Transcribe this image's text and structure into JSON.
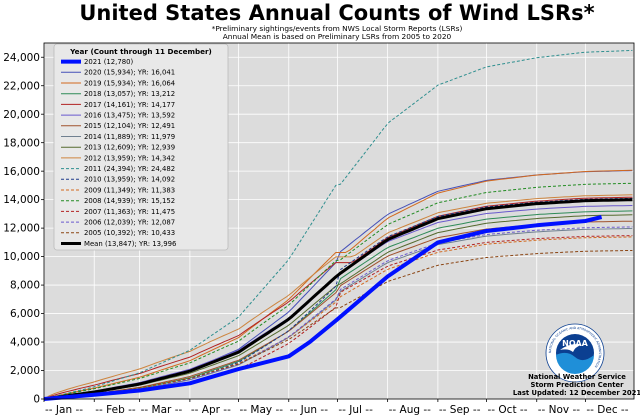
{
  "chart_data": {
    "type": "line",
    "title": "United States Annual Counts of Wind LSRs*",
    "subtitle_lines": [
      "*Preliminary sightings/events from NWS Local Storm Reports (LSRs)",
      "Annual Mean is based on Preliminary LSRs from 2005 to 2020"
    ],
    "xlabel": "",
    "ylabel": "",
    "ylim": [
      0,
      25000
    ],
    "yticks": [
      0,
      2000,
      4000,
      6000,
      8000,
      10000,
      12000,
      14000,
      16000,
      18000,
      20000,
      22000,
      24000
    ],
    "ytick_labels": [
      "0",
      "2,000",
      "4,000",
      "6,000",
      "8,000",
      "10,000",
      "12,000",
      "14,000",
      "16,000",
      "18,000",
      "20,000",
      "22,000",
      "24,000"
    ],
    "xlim": [
      1,
      365
    ],
    "x_units": "day of year",
    "xticks": [
      1,
      32,
      60,
      91,
      121,
      152,
      182,
      213,
      244,
      274,
      305,
      335
    ],
    "xtick_labels": [
      "-- Jan --",
      "-- Feb --",
      "-- Mar --",
      "-- Apr --",
      "-- May --",
      "-- Jun --",
      "-- Jul --",
      "-- Aug --",
      "-- Sep --",
      "-- Oct --",
      "-- Nov --",
      "-- Dec --"
    ],
    "grid": true,
    "legend_title": "Year (Count through 11 December)",
    "legend_position": "top-left",
    "series": [
      {
        "name": "2021 (12,780)",
        "color": "#0010ff",
        "dash": "solid",
        "width": 4,
        "legend_width": 4,
        "final": 12780,
        "end_x": 345,
        "ramp": [
          0.84,
          0.98
        ],
        "shape": [
          [
            1,
            0
          ],
          [
            32,
            300
          ],
          [
            60,
            600
          ],
          [
            91,
            1100
          ],
          [
            121,
            2100
          ],
          [
            152,
            3000
          ],
          [
            165,
            4000
          ],
          [
            182,
            5600
          ],
          [
            213,
            8600
          ],
          [
            244,
            11000
          ],
          [
            274,
            11800
          ],
          [
            305,
            12200
          ],
          [
            335,
            12500
          ],
          [
            345,
            12780
          ]
        ]
      },
      {
        "name": "2020 (15,934); YR: 16,041",
        "color": "#4550b8",
        "dash": "solid",
        "width": 1,
        "legend_width": 1,
        "final": 16041,
        "ramp": [
          0.95,
          1.05
        ]
      },
      {
        "name": "2019 (15,934); YR: 16,064",
        "color": "#d2691e",
        "dash": "solid",
        "width": 1,
        "legend_width": 1,
        "final": 16064,
        "ramp": [
          1.1,
          0.95
        ]
      },
      {
        "name": "2018 (13,057); YR: 13,212",
        "color": "#2e8b57",
        "dash": "solid",
        "width": 1,
        "legend_width": 1,
        "final": 13212,
        "ramp": [
          0.9,
          1.03
        ]
      },
      {
        "name": "2017 (14,161); YR: 14,177",
        "color": "#b22222",
        "dash": "solid",
        "width": 1,
        "legend_width": 1,
        "final": 14177,
        "ramp": [
          1.25,
          1.0
        ]
      },
      {
        "name": "2016 (13,475); YR: 13,592",
        "color": "#6a5acd",
        "dash": "solid",
        "width": 1,
        "legend_width": 1,
        "final": 13592,
        "ramp": [
          1.05,
          1.08
        ]
      },
      {
        "name": "2015 (12,104); YR: 12,491",
        "color": "#a0522d",
        "dash": "solid",
        "width": 1,
        "legend_width": 1,
        "final": 12491,
        "ramp": [
          0.95,
          1.02
        ]
      },
      {
        "name": "2014 (11,889); YR: 11,979",
        "color": "#708090",
        "dash": "solid",
        "width": 1,
        "legend_width": 1,
        "final": 11979,
        "ramp": [
          0.9,
          1.0
        ]
      },
      {
        "name": "2013 (12,609); YR: 12,939",
        "color": "#556b2f",
        "dash": "solid",
        "width": 1,
        "legend_width": 1,
        "final": 12939,
        "ramp": [
          1.0,
          0.98
        ]
      },
      {
        "name": "2012 (13,959); YR: 14,342",
        "color": "#cd853f",
        "dash": "solid",
        "width": 1,
        "legend_width": 1,
        "final": 14342,
        "ramp": [
          1.35,
          1.08
        ]
      },
      {
        "name": "2011 (24,394); YR: 24,482",
        "color": "#2f8f8f",
        "dash": "dashed",
        "width": 1,
        "legend_width": 1,
        "final": 24482,
        "ramp": [
          1.0,
          0.95
        ]
      },
      {
        "name": "2010 (13,959); YR: 14,092",
        "color": "#1e3a8a",
        "dash": "dashed",
        "width": 1,
        "legend_width": 1,
        "final": 14092,
        "ramp": [
          0.85,
          1.05
        ]
      },
      {
        "name": "2009 (11,349); YR: 11,383",
        "color": "#d2691e",
        "dash": "dashed",
        "width": 1,
        "legend_width": 1,
        "final": 11383,
        "ramp": [
          0.95,
          1.0
        ]
      },
      {
        "name": "2008 (14,939); YR: 15,152",
        "color": "#228b22",
        "dash": "dashed",
        "width": 1,
        "legend_width": 1,
        "final": 15152,
        "ramp": [
          1.1,
          1.05
        ]
      },
      {
        "name": "2007 (11,363); YR: 11,475",
        "color": "#b22222",
        "dash": "dashed",
        "width": 1,
        "legend_width": 1,
        "final": 11475,
        "ramp": [
          0.85,
          1.08
        ]
      },
      {
        "name": "2006 (12,039); YR: 12,087",
        "color": "#6a5acd",
        "dash": "dashed",
        "width": 1,
        "legend_width": 1,
        "final": 12087,
        "ramp": [
          0.9,
          1.02
        ]
      },
      {
        "name": "2005 (10,392); YR: 10,433",
        "color": "#8b4513",
        "dash": "dashed",
        "width": 1,
        "legend_width": 1,
        "final": 10433,
        "ramp": [
          1.0,
          0.95
        ]
      },
      {
        "name": "Mean (13,847); YR: 13,996",
        "color": "#000000",
        "dash": "solid",
        "width": 3,
        "legend_width": 3,
        "final": 13996,
        "ramp": [
          1.0,
          1.0
        ]
      }
    ],
    "credit_lines": [
      "National Weather Service",
      "Storm Prediction Center",
      "Last Updated: 12 December 2021"
    ],
    "logo": {
      "text": "NOAA",
      "ring_text": "NATIONAL OCEANIC AND ATMOSPHERIC ADMINISTRATION",
      "colors": {
        "sky": "#0b3f91",
        "sea": "#1f8fd8",
        "bird": "#ffffff"
      }
    },
    "colors": {
      "plot_background": "#dcdcdc",
      "grid": "#ffffff",
      "legend_background": "#e8e8e8"
    }
  }
}
